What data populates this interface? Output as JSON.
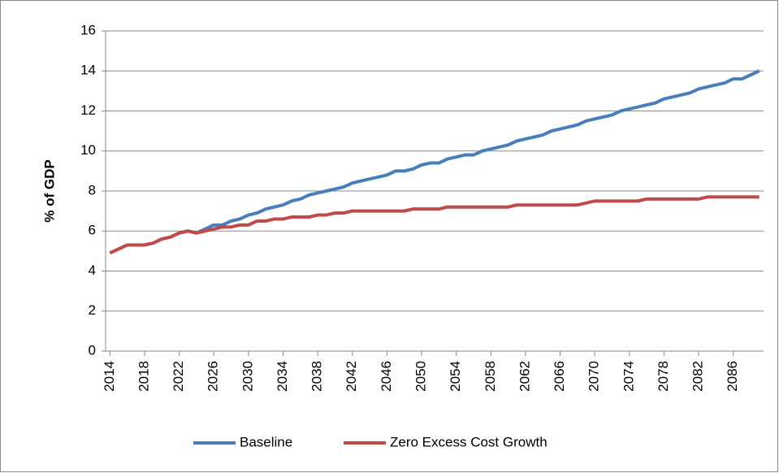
{
  "chart_data": {
    "type": "line",
    "y_label": "% of GDP",
    "x": [
      2014,
      2015,
      2016,
      2017,
      2018,
      2019,
      2020,
      2021,
      2022,
      2023,
      2024,
      2025,
      2026,
      2027,
      2028,
      2029,
      2030,
      2031,
      2032,
      2033,
      2034,
      2035,
      2036,
      2037,
      2038,
      2039,
      2040,
      2041,
      2042,
      2043,
      2044,
      2045,
      2046,
      2047,
      2048,
      2049,
      2050,
      2051,
      2052,
      2053,
      2054,
      2055,
      2056,
      2057,
      2058,
      2059,
      2060,
      2061,
      2062,
      2063,
      2064,
      2065,
      2066,
      2067,
      2068,
      2069,
      2070,
      2071,
      2072,
      2073,
      2074,
      2075,
      2076,
      2077,
      2078,
      2079,
      2080,
      2081,
      2082,
      2083,
      2084,
      2085,
      2086,
      2087,
      2088,
      2089
    ],
    "series": [
      {
        "name": "Baseline",
        "color": "#4a7ebb",
        "values": [
          4.9,
          5.1,
          5.3,
          5.3,
          5.3,
          5.4,
          5.6,
          5.7,
          5.9,
          6.0,
          5.9,
          6.1,
          6.3,
          6.3,
          6.5,
          6.6,
          6.8,
          6.9,
          7.1,
          7.2,
          7.3,
          7.5,
          7.6,
          7.8,
          7.9,
          8.0,
          8.1,
          8.2,
          8.4,
          8.5,
          8.6,
          8.7,
          8.8,
          9.0,
          9.0,
          9.1,
          9.3,
          9.4,
          9.4,
          9.6,
          9.7,
          9.8,
          9.8,
          10.0,
          10.1,
          10.2,
          10.3,
          10.5,
          10.6,
          10.7,
          10.8,
          11.0,
          11.1,
          11.2,
          11.3,
          11.5,
          11.6,
          11.7,
          11.8,
          12.0,
          12.1,
          12.2,
          12.3,
          12.4,
          12.6,
          12.7,
          12.8,
          12.9,
          13.1,
          13.2,
          13.3,
          13.4,
          13.6,
          13.6,
          13.8,
          14.0
        ]
      },
      {
        "name": "Zero Excess Cost Growth",
        "color": "#be4b48",
        "values": [
          4.9,
          5.1,
          5.3,
          5.3,
          5.3,
          5.4,
          5.6,
          5.7,
          5.9,
          6.0,
          5.9,
          6.0,
          6.1,
          6.2,
          6.2,
          6.3,
          6.3,
          6.5,
          6.5,
          6.6,
          6.6,
          6.7,
          6.7,
          6.7,
          6.8,
          6.8,
          6.9,
          6.9,
          7.0,
          7.0,
          7.0,
          7.0,
          7.0,
          7.0,
          7.0,
          7.1,
          7.1,
          7.1,
          7.1,
          7.2,
          7.2,
          7.2,
          7.2,
          7.2,
          7.2,
          7.2,
          7.2,
          7.3,
          7.3,
          7.3,
          7.3,
          7.3,
          7.3,
          7.3,
          7.3,
          7.4,
          7.5,
          7.5,
          7.5,
          7.5,
          7.5,
          7.5,
          7.6,
          7.6,
          7.6,
          7.6,
          7.6,
          7.6,
          7.6,
          7.7,
          7.7,
          7.7,
          7.7,
          7.7,
          7.7,
          7.7
        ]
      }
    ],
    "xlim": [
      2013.5,
      2089.5
    ],
    "xticks": [
      2014,
      2018,
      2022,
      2026,
      2030,
      2034,
      2038,
      2042,
      2046,
      2050,
      2054,
      2058,
      2062,
      2066,
      2070,
      2074,
      2078,
      2082,
      2086
    ],
    "ylim": [
      0,
      16
    ],
    "yticks": [
      0,
      2,
      4,
      6,
      8,
      10,
      12,
      14,
      16
    ],
    "grid": true,
    "legend": "bottom"
  }
}
